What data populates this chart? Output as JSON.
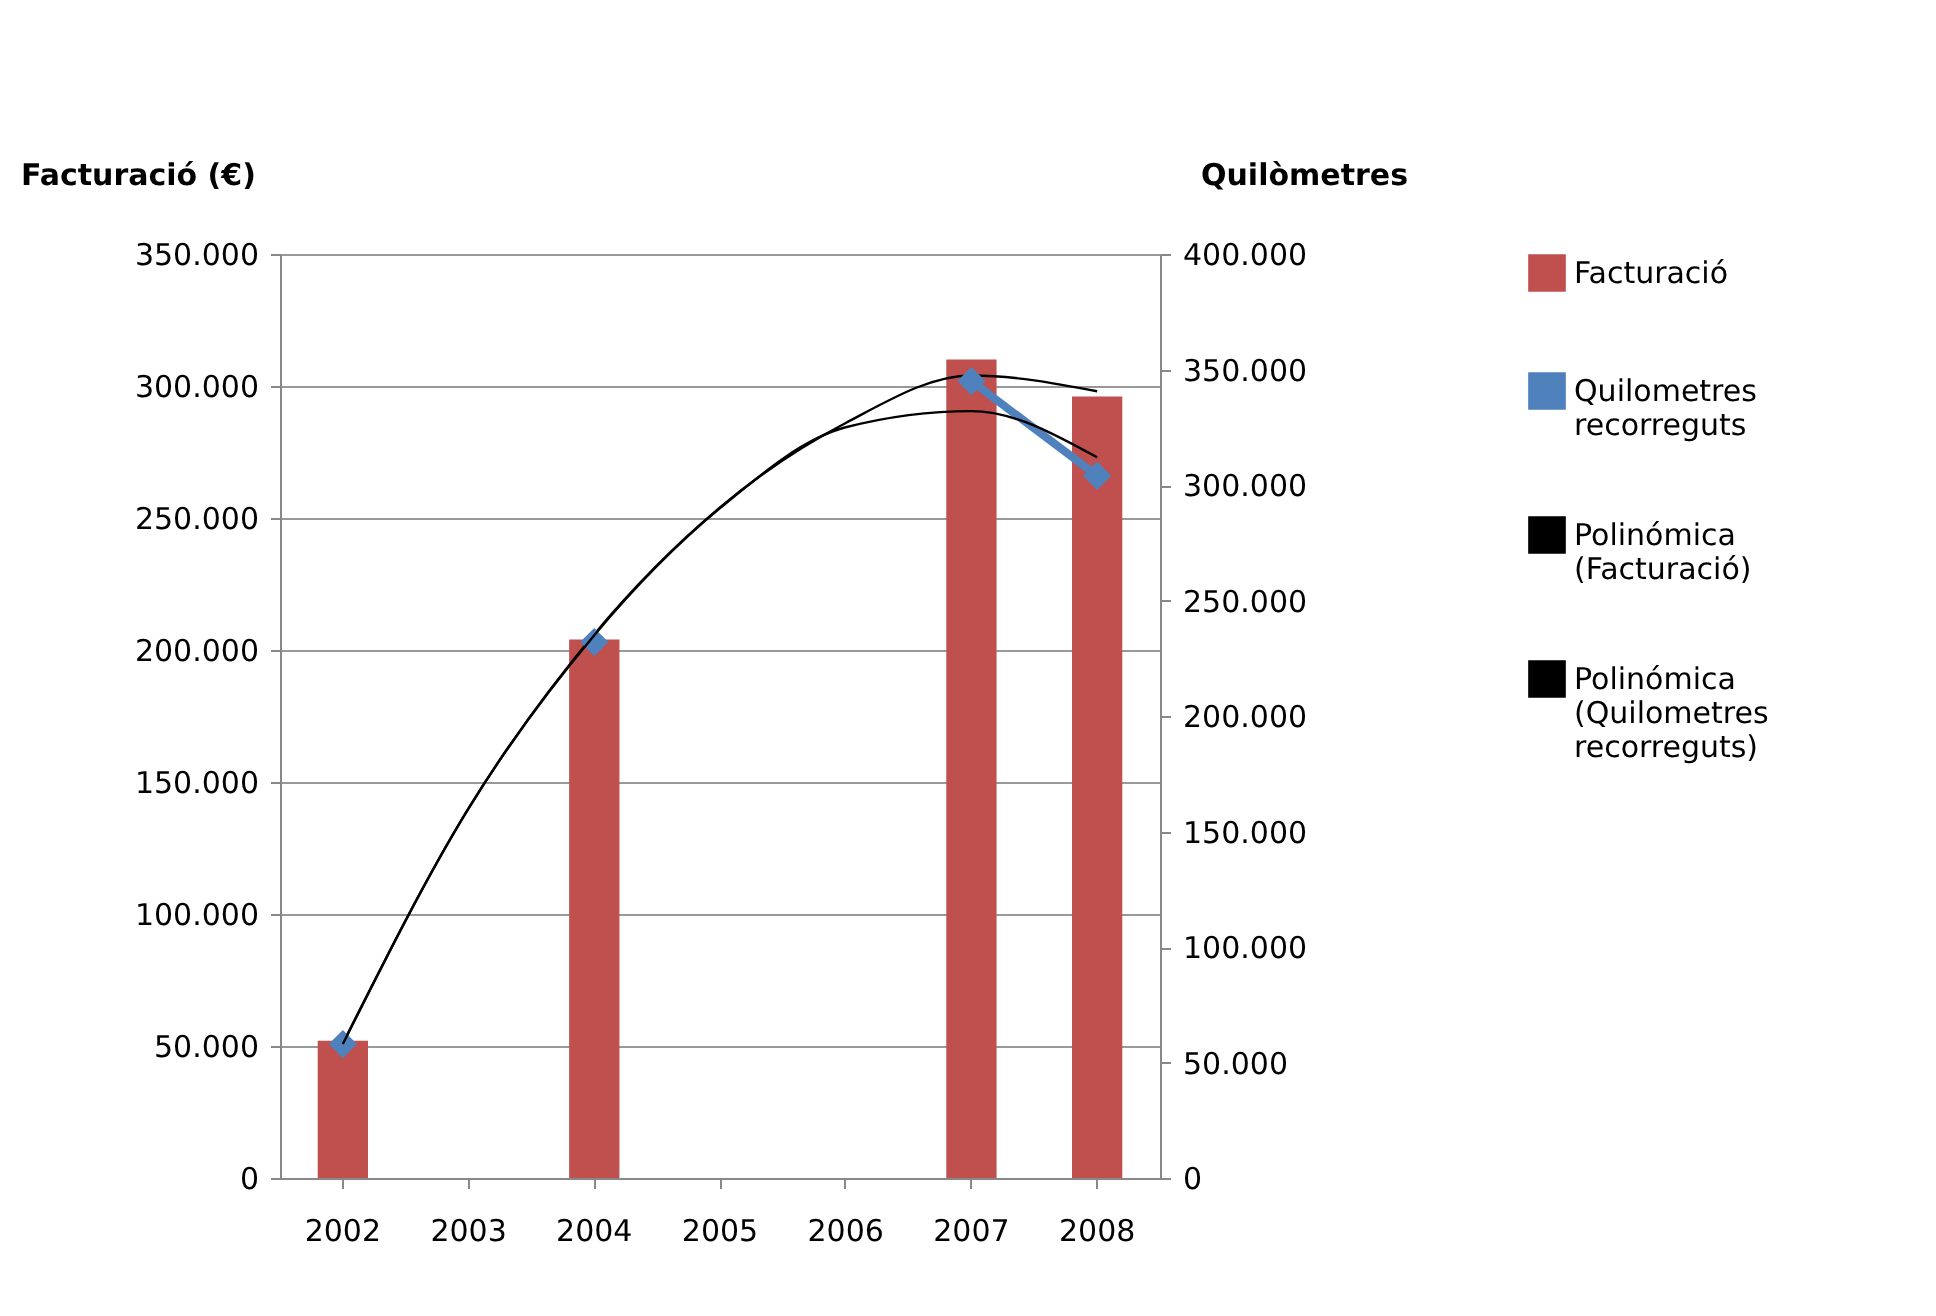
{
  "chart_data": {
    "type": "bar",
    "ylabel": "Facturació (€)",
    "y2label": "Quilòmetres",
    "categories": [
      "2002",
      "2003",
      "2004",
      "2005",
      "2006",
      "2007",
      "2008"
    ],
    "ylim": [
      0,
      350000
    ],
    "yticks": [
      0,
      {
        "value": 50000,
        "label": "50.000"
      },
      {
        "value": 100000,
        "label": "100.000"
      },
      {
        "value": 150000,
        "label": "150.000"
      },
      {
        "value": 200000,
        "label": "200.000"
      },
      {
        "value": 250000,
        "label": "250.000"
      },
      {
        "value": 300000,
        "label": "300.000"
      },
      {
        "value": 350000,
        "label": "350.000"
      }
    ],
    "y2lim": [
      0,
      400000
    ],
    "y2ticks": [
      0,
      {
        "value": 50000,
        "label": "50.000"
      },
      {
        "value": 100000,
        "label": "100.000"
      },
      {
        "value": 150000,
        "label": "150.000"
      },
      {
        "value": 200000,
        "label": "200.000"
      },
      {
        "value": 250000,
        "label": "250.000"
      },
      {
        "value": 300000,
        "label": "300.000"
      },
      {
        "value": 350000,
        "label": "350.000"
      },
      {
        "value": 400000,
        "label": "400.000"
      }
    ],
    "grid": "y",
    "legend": "right",
    "series": [
      {
        "name": "Facturació",
        "color": "#c0504d",
        "values": [
          52000,
          null,
          204000,
          null,
          null,
          310000,
          296000
        ]
      },
      {
        "name": "Quilometres recorreguts",
        "type": "line",
        "axis": "y2",
        "color": "#4f81bd",
        "marker": "diamond",
        "values": [
          58000,
          null,
          232000,
          null,
          null,
          345000,
          304000
        ]
      },
      {
        "name": "Polinómica (Facturació)",
        "type": "line",
        "color": "#000000",
        "marker": "none",
        "values": [
          51000,
          140000,
          206000,
          254000,
          286000,
          304000,
          298000
        ]
      },
      {
        "name": "Polinómica (Quilometres recorreguts)",
        "type": "line",
        "axis": "y2",
        "color": "#000000",
        "marker": "none",
        "values": [
          58000,
          160000,
          235000,
          290000,
          325000,
          332000,
          312000
        ]
      }
    ]
  }
}
